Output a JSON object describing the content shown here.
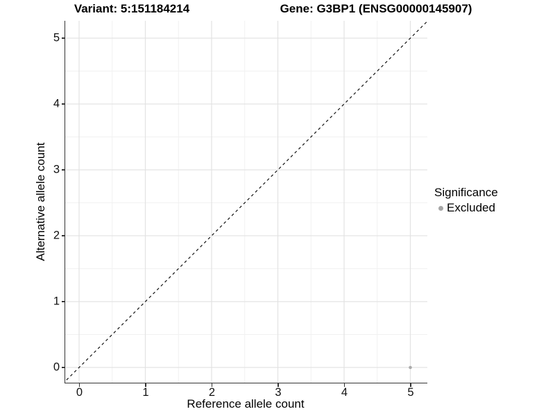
{
  "header": {
    "variant_title": "Variant: 5:151184214",
    "gene_title": "Gene: G3BP1 (ENSG00000145907)"
  },
  "chart_data": {
    "type": "scatter",
    "xlabel": "Reference allele count",
    "ylabel": "Alternative allele count",
    "xlim": [
      -0.25,
      5.25
    ],
    "ylim": [
      -0.25,
      5.25
    ],
    "x_ticks": [
      0,
      1,
      2,
      3,
      4,
      5
    ],
    "y_ticks": [
      0,
      1,
      2,
      3,
      4,
      5
    ],
    "x_minor_ticks": [
      0.5,
      1.5,
      2.5,
      3.5,
      4.5
    ],
    "y_minor_ticks": [
      0.5,
      1.5,
      2.5,
      3.5,
      4.5
    ],
    "grid": true,
    "grid_major_color": "#e3e3e3",
    "grid_minor_color": "#f1f1f1",
    "identity_line": {
      "style": "dashed",
      "color": "#111111",
      "from": [
        -0.25,
        -0.25
      ],
      "to": [
        5.25,
        5.25
      ]
    },
    "series": [
      {
        "name": "Excluded",
        "color": "#ababab",
        "points": [
          {
            "x": 5,
            "y": 0
          }
        ]
      }
    ],
    "legend": {
      "position": "right",
      "title": "Significance",
      "entries": [
        {
          "label": "Excluded",
          "color": "#a6a6a6"
        }
      ]
    }
  },
  "colors": {
    "axis_line": "#333333",
    "background": "#ffffff",
    "point": "#ababab"
  }
}
